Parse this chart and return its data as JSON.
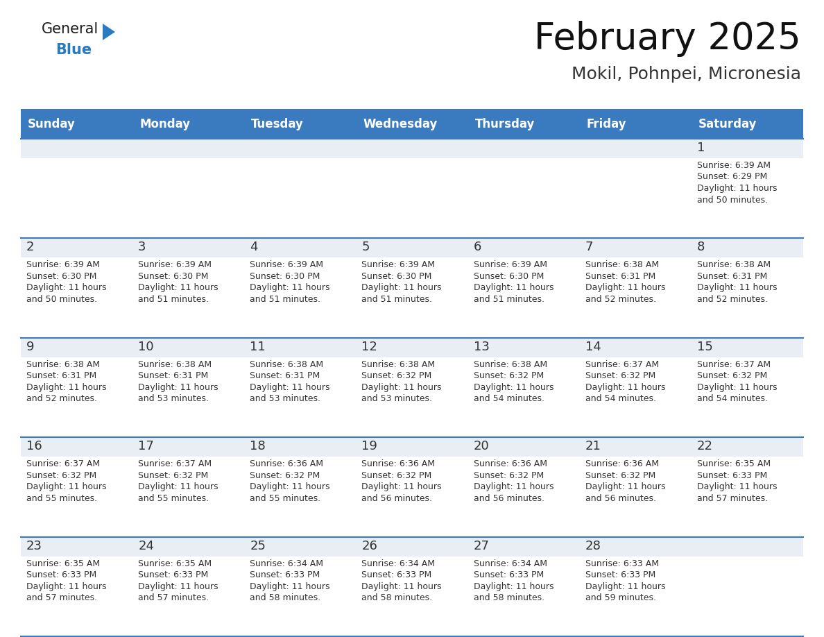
{
  "title": "February 2025",
  "subtitle": "Mokil, Pohnpei, Micronesia",
  "header_bg_color": "#3a7abf",
  "header_text_color": "#ffffff",
  "day_strip_color": "#e8eef4",
  "cell_bg_color": "#ffffff",
  "grid_line_color": "#3a7abf",
  "day_number_color": "#333333",
  "cell_text_color": "#333333",
  "days_of_week": [
    "Sunday",
    "Monday",
    "Tuesday",
    "Wednesday",
    "Thursday",
    "Friday",
    "Saturday"
  ],
  "num_cols": 7,
  "num_rows": 5,
  "calendar_data": [
    [
      null,
      null,
      null,
      null,
      null,
      null,
      {
        "day": 1,
        "sunrise": "6:39 AM",
        "sunset": "6:29 PM",
        "daylight": "11 hours and 50 minutes."
      }
    ],
    [
      {
        "day": 2,
        "sunrise": "6:39 AM",
        "sunset": "6:30 PM",
        "daylight": "11 hours and 50 minutes."
      },
      {
        "day": 3,
        "sunrise": "6:39 AM",
        "sunset": "6:30 PM",
        "daylight": "11 hours and 51 minutes."
      },
      {
        "day": 4,
        "sunrise": "6:39 AM",
        "sunset": "6:30 PM",
        "daylight": "11 hours and 51 minutes."
      },
      {
        "day": 5,
        "sunrise": "6:39 AM",
        "sunset": "6:30 PM",
        "daylight": "11 hours and 51 minutes."
      },
      {
        "day": 6,
        "sunrise": "6:39 AM",
        "sunset": "6:30 PM",
        "daylight": "11 hours and 51 minutes."
      },
      {
        "day": 7,
        "sunrise": "6:38 AM",
        "sunset": "6:31 PM",
        "daylight": "11 hours and 52 minutes."
      },
      {
        "day": 8,
        "sunrise": "6:38 AM",
        "sunset": "6:31 PM",
        "daylight": "11 hours and 52 minutes."
      }
    ],
    [
      {
        "day": 9,
        "sunrise": "6:38 AM",
        "sunset": "6:31 PM",
        "daylight": "11 hours and 52 minutes."
      },
      {
        "day": 10,
        "sunrise": "6:38 AM",
        "sunset": "6:31 PM",
        "daylight": "11 hours and 53 minutes."
      },
      {
        "day": 11,
        "sunrise": "6:38 AM",
        "sunset": "6:31 PM",
        "daylight": "11 hours and 53 minutes."
      },
      {
        "day": 12,
        "sunrise": "6:38 AM",
        "sunset": "6:32 PM",
        "daylight": "11 hours and 53 minutes."
      },
      {
        "day": 13,
        "sunrise": "6:38 AM",
        "sunset": "6:32 PM",
        "daylight": "11 hours and 54 minutes."
      },
      {
        "day": 14,
        "sunrise": "6:37 AM",
        "sunset": "6:32 PM",
        "daylight": "11 hours and 54 minutes."
      },
      {
        "day": 15,
        "sunrise": "6:37 AM",
        "sunset": "6:32 PM",
        "daylight": "11 hours and 54 minutes."
      }
    ],
    [
      {
        "day": 16,
        "sunrise": "6:37 AM",
        "sunset": "6:32 PM",
        "daylight": "11 hours and 55 minutes."
      },
      {
        "day": 17,
        "sunrise": "6:37 AM",
        "sunset": "6:32 PM",
        "daylight": "11 hours and 55 minutes."
      },
      {
        "day": 18,
        "sunrise": "6:36 AM",
        "sunset": "6:32 PM",
        "daylight": "11 hours and 55 minutes."
      },
      {
        "day": 19,
        "sunrise": "6:36 AM",
        "sunset": "6:32 PM",
        "daylight": "11 hours and 56 minutes."
      },
      {
        "day": 20,
        "sunrise": "6:36 AM",
        "sunset": "6:32 PM",
        "daylight": "11 hours and 56 minutes."
      },
      {
        "day": 21,
        "sunrise": "6:36 AM",
        "sunset": "6:32 PM",
        "daylight": "11 hours and 56 minutes."
      },
      {
        "day": 22,
        "sunrise": "6:35 AM",
        "sunset": "6:33 PM",
        "daylight": "11 hours and 57 minutes."
      }
    ],
    [
      {
        "day": 23,
        "sunrise": "6:35 AM",
        "sunset": "6:33 PM",
        "daylight": "11 hours and 57 minutes."
      },
      {
        "day": 24,
        "sunrise": "6:35 AM",
        "sunset": "6:33 PM",
        "daylight": "11 hours and 57 minutes."
      },
      {
        "day": 25,
        "sunrise": "6:34 AM",
        "sunset": "6:33 PM",
        "daylight": "11 hours and 58 minutes."
      },
      {
        "day": 26,
        "sunrise": "6:34 AM",
        "sunset": "6:33 PM",
        "daylight": "11 hours and 58 minutes."
      },
      {
        "day": 27,
        "sunrise": "6:34 AM",
        "sunset": "6:33 PM",
        "daylight": "11 hours and 58 minutes."
      },
      {
        "day": 28,
        "sunrise": "6:33 AM",
        "sunset": "6:33 PM",
        "daylight": "11 hours and 59 minutes."
      },
      null
    ]
  ],
  "logo_text1": "General",
  "logo_text2": "Blue",
  "logo_color1": "#1a1a1a",
  "logo_color2": "#2a7abf",
  "logo_triangle_color": "#2a7abf",
  "title_fontsize": 38,
  "subtitle_fontsize": 18,
  "header_fontsize": 12,
  "day_num_fontsize": 13,
  "cell_fontsize": 9
}
